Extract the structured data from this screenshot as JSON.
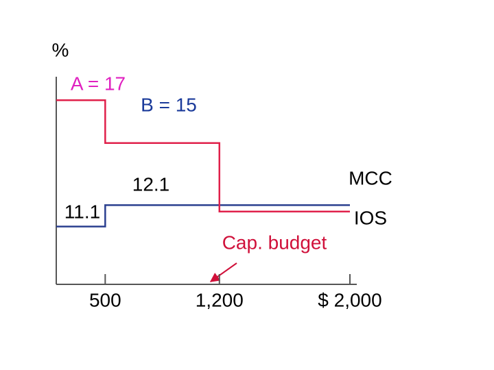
{
  "chart_data": {
    "type": "line",
    "y_label": "%",
    "xlim": [
      200,
      2000
    ],
    "ylim": [
      8.4,
      18
    ],
    "xticks": [
      500,
      {
        "value": 1200,
        "label": "1,200"
      },
      {
        "value": 2000,
        "label": "$ 2,000"
      }
    ],
    "series": [
      {
        "name": "MCC",
        "color": "#2a3f8f",
        "x": [
          200,
          500,
          500,
          2000
        ],
        "values": [
          11.1,
          11.1,
          12.1,
          12.1
        ]
      },
      {
        "name": "IOS",
        "color": "#e0204a",
        "x": [
          200,
          500,
          500,
          1200,
          1200,
          2000
        ],
        "values": [
          17,
          17,
          15,
          15,
          11.8,
          11.8
        ]
      }
    ],
    "annotations": [
      {
        "text": "A = 17",
        "color": "#e020c0"
      },
      {
        "text": "B = 15",
        "color": "#1a3a9a"
      },
      {
        "text": "12.1",
        "color": "#000000"
      },
      {
        "text": "11.1",
        "color": "#000000"
      },
      {
        "text": "Cap. budget",
        "color": "#d0103a"
      }
    ]
  }
}
